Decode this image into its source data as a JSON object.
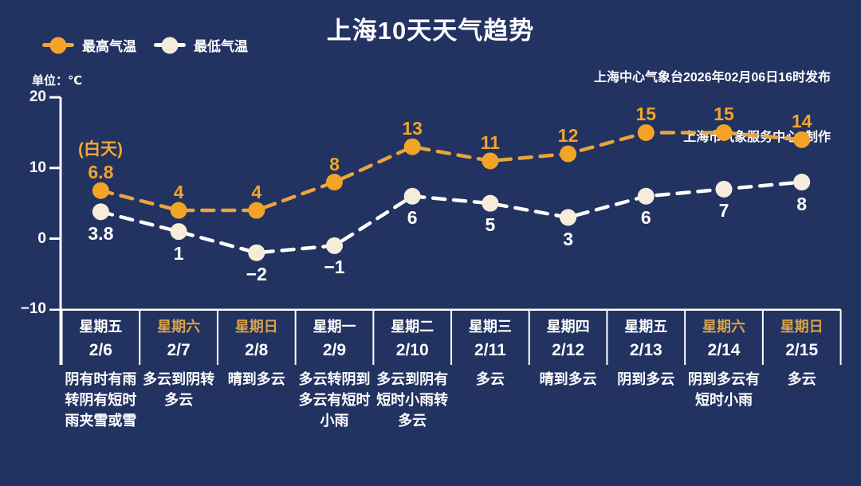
{
  "title": "上海10天天气趋势",
  "publisher": {
    "line1": "上海中心气象台2026年02月06日16时发布",
    "line2": "上海市气象服务中心  制作"
  },
  "unit_label": "单位：℃",
  "daytime_label": "(白天)",
  "legend": [
    {
      "label": "最高气温"
    },
    {
      "label": "最低气温"
    }
  ],
  "colors": {
    "background": "#223261",
    "high_marker": "#f3a427",
    "high_line": "#e9a63c",
    "high_label": "#f2a52a",
    "low_marker": "#f6ecda",
    "low_line": "#ffffff",
    "low_label": "#ffffff",
    "weekend_text": "#d9a249",
    "weekday_text": "#ffffff",
    "axis": "#ffffff"
  },
  "chart_data": {
    "type": "line",
    "title": "上海10天天气趋势",
    "x": [
      "2/6",
      "2/7",
      "2/8",
      "2/9",
      "2/10",
      "2/11",
      "2/12",
      "2/13",
      "2/14",
      "2/15"
    ],
    "weekdays": [
      "星期五",
      "星期六",
      "星期日",
      "星期一",
      "星期二",
      "星期三",
      "星期四",
      "星期五",
      "星期六",
      "星期日"
    ],
    "weekend_flags": [
      false,
      true,
      true,
      false,
      false,
      false,
      false,
      false,
      true,
      true
    ],
    "series": [
      {
        "name": "最高气温",
        "values": [
          6.8,
          4,
          4,
          8,
          13,
          11,
          12,
          15,
          15,
          14
        ],
        "label_position": "above"
      },
      {
        "name": "最低气温",
        "values": [
          3.8,
          1,
          -2,
          -1,
          6,
          5,
          3,
          6,
          7,
          8
        ],
        "label_position": "below"
      }
    ],
    "weather": [
      "阴有时有雨转阴有短时雨夹雪或雪",
      "多云到阴转多云",
      "晴到多云",
      "多云转阴到多云有短时小雨",
      "多云到阴有短时小雨转多云",
      "多云",
      "晴到多云",
      "阴到多云",
      "阴到多云有短时小雨",
      "多云"
    ],
    "ylabel": "单位：℃",
    "yticks": [
      20,
      10,
      0,
      -10
    ],
    "ylim": [
      -10,
      20
    ],
    "grid": false,
    "legend_position": "top-left"
  }
}
